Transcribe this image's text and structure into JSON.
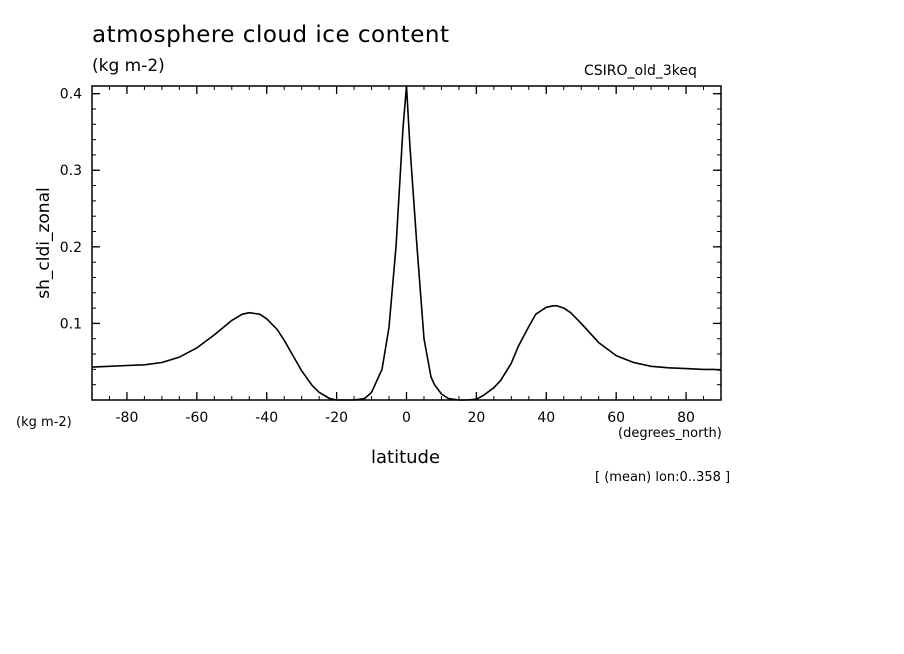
{
  "chart_data": {
    "type": "line",
    "title": "atmosphere cloud ice content",
    "units": "(kg m-2)",
    "model": "CSIRO_old_3keq",
    "ylabel": "sh_cldi_zonal",
    "ylabel_units": "(kg m-2)",
    "xlabel": "latitude",
    "xlabel_units": "(degrees_north)",
    "footnote": "[ (mean) lon:0..358 ]",
    "xlim": [
      -90,
      90
    ],
    "ylim": [
      0,
      0.41
    ],
    "xticks": [
      -80,
      -60,
      -40,
      -20,
      0,
      20,
      40,
      60,
      80
    ],
    "xtick_labels": [
      "-80",
      "-60",
      "-40",
      "-20",
      "0",
      "20",
      "40",
      "60",
      "80"
    ],
    "yticks": [
      0.1,
      0.2,
      0.3,
      0.4
    ],
    "ytick_labels": [
      "0.1",
      "0.2",
      "0.3",
      "0.4"
    ],
    "grid": false,
    "series": [
      {
        "x": [
          -90,
          -85,
          -80,
          -75,
          -70,
          -65,
          -60,
          -55,
          -50,
          -47,
          -45,
          -42,
          -40,
          -37,
          -35,
          -32,
          -30,
          -27,
          -25,
          -22,
          -20,
          -17,
          -15,
          -12,
          -10,
          -8,
          -7,
          -5,
          -3,
          -1,
          0,
          1,
          3,
          5,
          7,
          8,
          10,
          12,
          15,
          17,
          20,
          22,
          25,
          27,
          30,
          32,
          35,
          37,
          40,
          42,
          43,
          45,
          47,
          50,
          55,
          60,
          65,
          70,
          75,
          80,
          85,
          88,
          90
        ],
        "values": [
          0.043,
          0.044,
          0.045,
          0.046,
          0.049,
          0.056,
          0.068,
          0.085,
          0.104,
          0.112,
          0.114,
          0.112,
          0.106,
          0.092,
          0.078,
          0.054,
          0.038,
          0.019,
          0.01,
          0.002,
          0.0,
          0.0,
          0.0,
          0.002,
          0.01,
          0.03,
          0.04,
          0.095,
          0.2,
          0.355,
          0.41,
          0.33,
          0.2,
          0.08,
          0.03,
          0.02,
          0.008,
          0.002,
          0.0,
          0.0,
          0.001,
          0.006,
          0.016,
          0.026,
          0.048,
          0.07,
          0.096,
          0.112,
          0.121,
          0.123,
          0.123,
          0.12,
          0.114,
          0.1,
          0.075,
          0.058,
          0.049,
          0.044,
          0.042,
          0.041,
          0.04,
          0.04,
          0.039
        ]
      }
    ]
  }
}
